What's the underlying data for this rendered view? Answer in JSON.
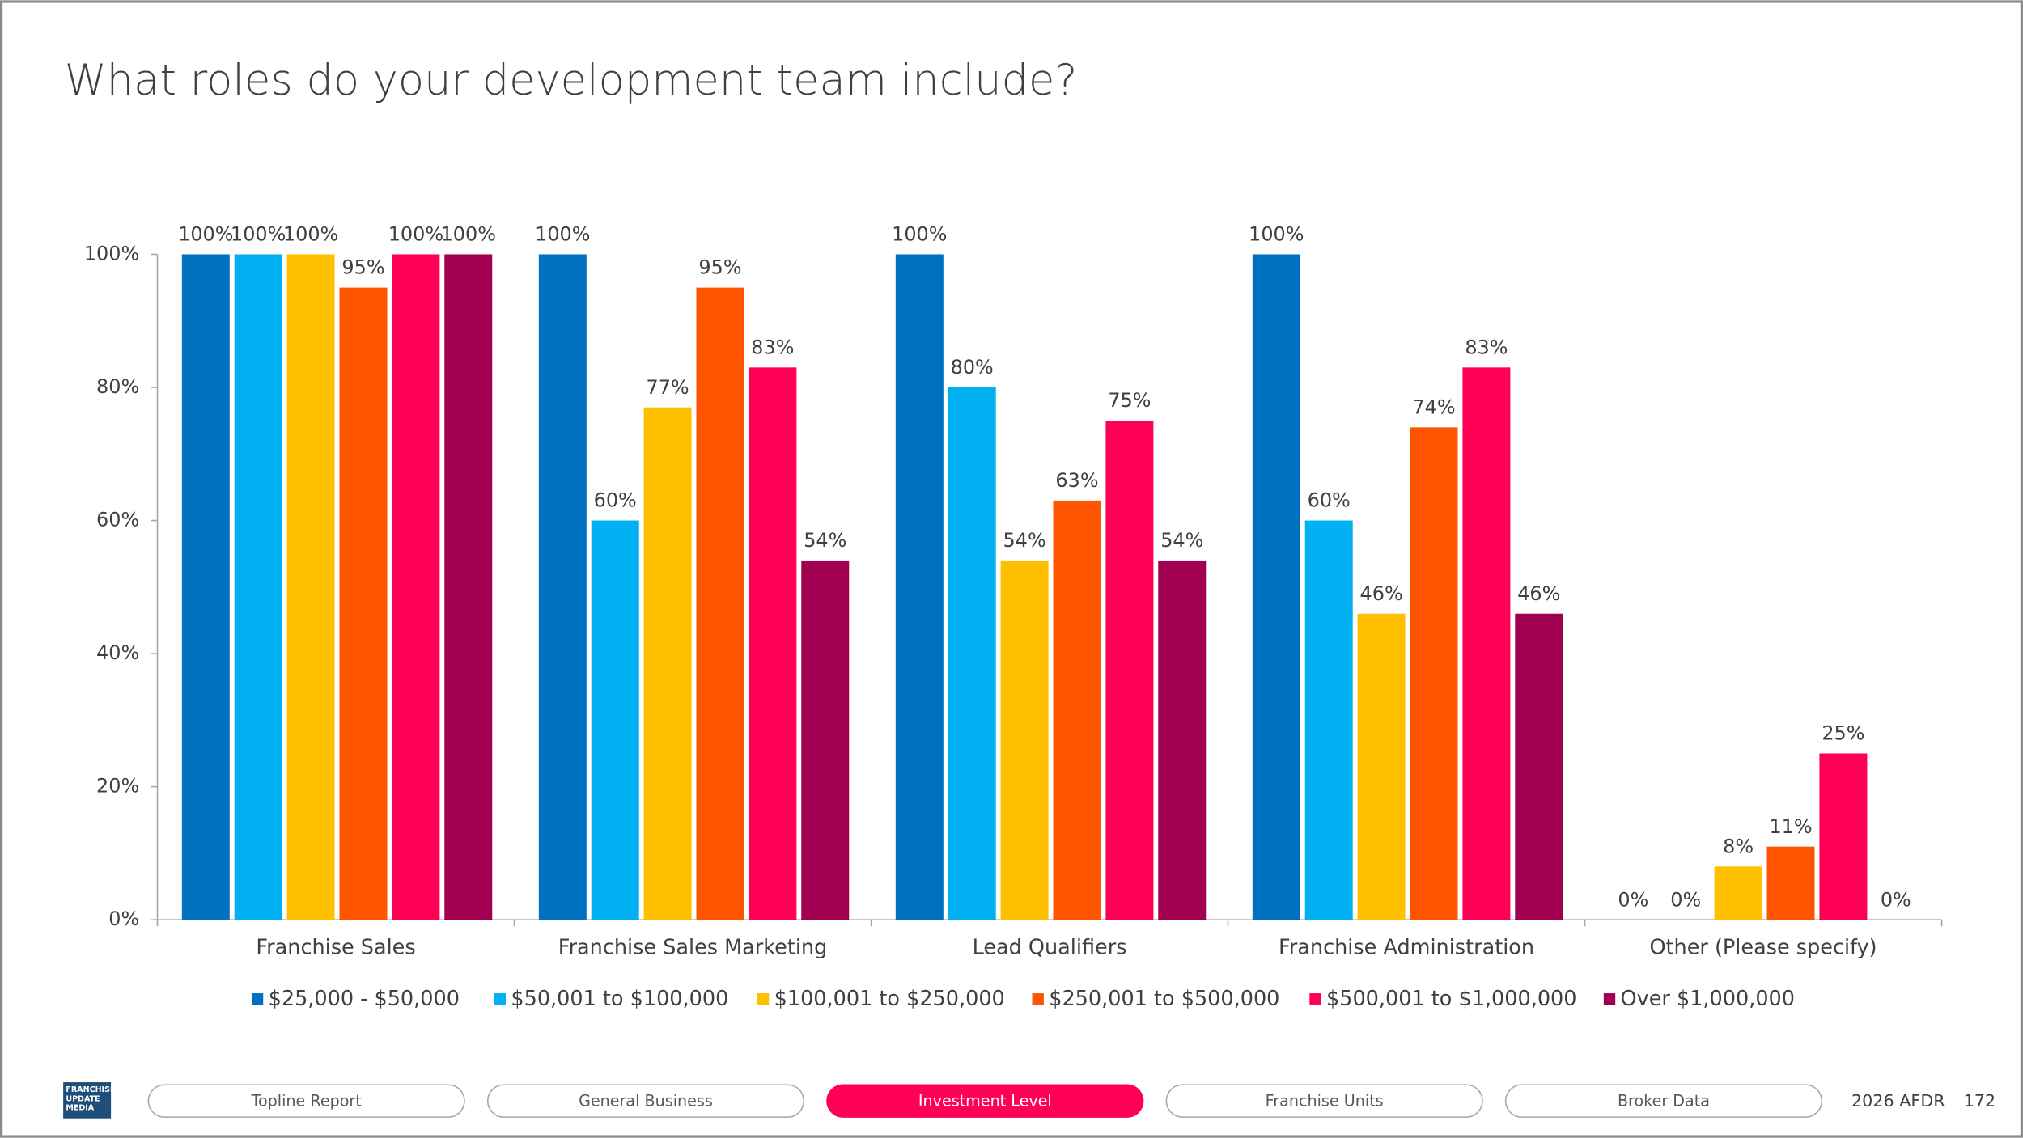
{
  "chart_data": {
    "type": "bar",
    "title": "What roles do your development team include?",
    "categories": [
      "Franchise Sales",
      "Franchise Sales Marketing",
      "Lead Qualifiers",
      "Franchise Administration",
      "Other (Please specify)"
    ],
    "series": [
      {
        "name": "$25,000 - $50,000",
        "color": "#0070c0",
        "values": [
          100,
          100,
          100,
          100,
          0
        ],
        "value_labels": [
          "100%",
          "100%",
          "100%",
          "100%",
          "0%"
        ]
      },
      {
        "name": "$50,001 to $100,000",
        "color": "#00b0f0",
        "values": [
          100,
          60,
          80,
          60,
          0
        ],
        "value_labels": [
          "100%",
          "60%",
          "80%",
          "60%",
          "0%"
        ]
      },
      {
        "name": "$100,001 to $250,000",
        "color": "#ffc000",
        "values": [
          100,
          77,
          54,
          46,
          8
        ],
        "value_labels": [
          "100%",
          "77%",
          "54%",
          "46%",
          "8%"
        ]
      },
      {
        "name": "$250,001 to $500,000",
        "color": "#ff5500",
        "values": [
          95,
          95,
          63,
          74,
          11
        ],
        "value_labels": [
          "95%",
          "95%",
          "63%",
          "74%",
          "11%"
        ]
      },
      {
        "name": "$500,001 to $1,000,000",
        "color": "#ff0055",
        "values": [
          100,
          83,
          75,
          83,
          25
        ],
        "value_labels": [
          "100%",
          "83%",
          "75%",
          "83%",
          "25%"
        ]
      },
      {
        "name": "Over $1,000,000",
        "color": "#a0004f",
        "values": [
          100,
          54,
          54,
          46,
          0
        ],
        "value_labels": [
          "100%",
          "54%",
          "54%",
          "46%",
          "0%"
        ]
      }
    ],
    "ylim": [
      0,
      100
    ],
    "yticks": [
      {
        "value": 0,
        "label": "0%"
      },
      {
        "value": 20,
        "label": "20%"
      },
      {
        "value": 40,
        "label": "40%"
      },
      {
        "value": 60,
        "label": "60%"
      },
      {
        "value": 80,
        "label": "80%"
      },
      {
        "value": 100,
        "label": "100%"
      }
    ],
    "legend": "bottom"
  },
  "footer": {
    "logo": [
      "FRANCHISE",
      "UPDATE",
      "MEDIA"
    ],
    "nav": [
      "Topline Report",
      "General Business",
      "Investment Level",
      "Franchise Units",
      "Broker Data"
    ],
    "active": 2,
    "report": "2026 AFDR",
    "page": "172"
  }
}
